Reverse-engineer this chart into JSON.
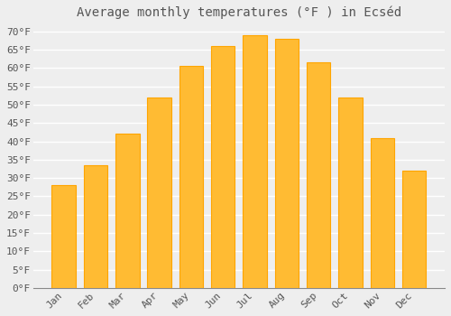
{
  "title": "Average monthly temperatures (°F ) in Ecséd",
  "months": [
    "Jan",
    "Feb",
    "Mar",
    "Apr",
    "May",
    "Jun",
    "Jul",
    "Aug",
    "Sep",
    "Oct",
    "Nov",
    "Dec"
  ],
  "values": [
    28,
    33.5,
    42,
    52,
    60.5,
    66,
    69,
    68,
    61.5,
    52,
    41,
    32
  ],
  "bar_color": "#FFBB33",
  "bar_edge_color": "#FFA500",
  "background_color": "#EEEEEE",
  "grid_color": "#FFFFFF",
  "text_color": "#555555",
  "ylim": [
    0,
    72
  ],
  "yticks": [
    0,
    5,
    10,
    15,
    20,
    25,
    30,
    35,
    40,
    45,
    50,
    55,
    60,
    65,
    70
  ],
  "title_fontsize": 10,
  "tick_fontsize": 8,
  "font_family": "monospace"
}
